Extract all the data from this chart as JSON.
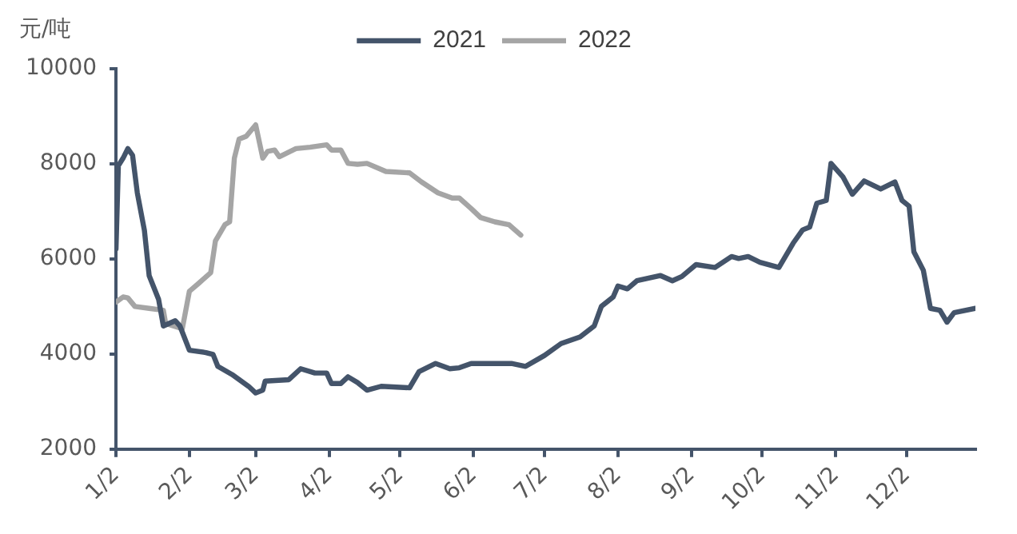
{
  "chart_data": {
    "type": "line",
    "ylabel": "元/吨",
    "legend": "top",
    "marker": "none",
    "line_style": "solid",
    "grid": false,
    "xlim": [
      "--01-02",
      "--12-31"
    ],
    "xticks": [
      {
        "value": "--01-02",
        "label": "1/2"
      },
      {
        "value": "--02-02",
        "label": "2/2"
      },
      {
        "value": "--03-02",
        "label": "3/2"
      },
      {
        "value": "--04-02",
        "label": "4/2"
      },
      {
        "value": "--05-02",
        "label": "5/2"
      },
      {
        "value": "--06-02",
        "label": "6/2"
      },
      {
        "value": "--07-02",
        "label": "7/2"
      },
      {
        "value": "--08-02",
        "label": "8/2"
      },
      {
        "value": "--09-02",
        "label": "9/2"
      },
      {
        "value": "--10-02",
        "label": "10/2"
      },
      {
        "value": "--11-02",
        "label": "11/2"
      },
      {
        "value": "--12-02",
        "label": "12/2"
      }
    ],
    "ylim": [
      2000,
      10000
    ],
    "yticks": [
      2000,
      4000,
      6000,
      8000,
      10000
    ],
    "series": [
      {
        "name": "2021",
        "color": "#44546a",
        "x": [
          "--01-02",
          "--01-03",
          "--01-05",
          "--01-07",
          "--01-09",
          "--01-11",
          "--01-14",
          "--01-16",
          "--01-20",
          "--01-22",
          "--01-27",
          "--01-29",
          "--02-02",
          "--02-09",
          "--02-12",
          "--02-14",
          "--02-20",
          "--02-27",
          "--03-02",
          "--03-05",
          "--03-06",
          "--03-16",
          "--03-21",
          "--03-27",
          "--04-01",
          "--04-03",
          "--04-07",
          "--04-10",
          "--04-14",
          "--04-18",
          "--04-24",
          "--05-06",
          "--05-10",
          "--05-17",
          "--05-23",
          "--05-27",
          "--06-01",
          "--06-12",
          "--06-18",
          "--06-24",
          "--07-02",
          "--07-09",
          "--07-17",
          "--07-23",
          "--07-26",
          "--07-31",
          "--08-02",
          "--08-06",
          "--08-10",
          "--08-20",
          "--08-25",
          "--08-29",
          "--09-04",
          "--09-12",
          "--09-19",
          "--09-22",
          "--09-26",
          "--10-01",
          "--10-09",
          "--10-15",
          "--10-19",
          "--10-22",
          "--10-25",
          "--10-29",
          "--10-31",
          "--11-05",
          "--11-09",
          "--11-14",
          "--11-21",
          "--11-27",
          "--11-30",
          "--12-03",
          "--12-05",
          "--12-09",
          "--12-12",
          "--12-16",
          "--12-19",
          "--12-22",
          "--12-31"
        ],
        "values": [
          6210,
          7960,
          8120,
          8320,
          8180,
          7390,
          6600,
          5650,
          5150,
          4590,
          4700,
          4590,
          4080,
          4030,
          3990,
          3740,
          3570,
          3320,
          3180,
          3240,
          3430,
          3460,
          3690,
          3600,
          3600,
          3380,
          3380,
          3520,
          3400,
          3240,
          3320,
          3290,
          3630,
          3800,
          3690,
          3710,
          3800,
          3800,
          3800,
          3740,
          3970,
          4220,
          4360,
          4590,
          5000,
          5200,
          5430,
          5370,
          5540,
          5650,
          5540,
          5630,
          5880,
          5820,
          6050,
          6010,
          6050,
          5930,
          5820,
          6330,
          6610,
          6670,
          7170,
          7230,
          8010,
          7730,
          7360,
          7640,
          7470,
          7620,
          7230,
          7110,
          6150,
          5760,
          4960,
          4920,
          4670,
          4870,
          4960
        ]
      },
      {
        "name": "2022",
        "color": "#a5a5a5",
        "x": [
          "--01-02",
          "--01-05",
          "--01-07",
          "--01-10",
          "--01-16",
          "--01-22",
          "--01-23",
          "--01-30",
          "--02-02",
          "--02-06",
          "--02-11",
          "--02-13",
          "--02-17",
          "--02-19",
          "--02-21",
          "--02-23",
          "--02-26",
          "--03-02",
          "--03-05",
          "--03-07",
          "--03-10",
          "--03-12",
          "--03-19",
          "--03-25",
          "--04-01",
          "--04-03",
          "--04-07",
          "--04-10",
          "--04-14",
          "--04-18",
          "--04-26",
          "--05-06",
          "--05-11",
          "--05-18",
          "--05-24",
          "--05-27",
          "--06-01",
          "--06-05",
          "--06-11",
          "--06-17",
          "--06-22"
        ],
        "values": [
          5090,
          5200,
          5180,
          5000,
          4960,
          4920,
          4640,
          4530,
          5320,
          5490,
          5710,
          6380,
          6720,
          6780,
          8120,
          8520,
          8580,
          8820,
          8120,
          8260,
          8290,
          8150,
          8320,
          8350,
          8400,
          8290,
          8290,
          8010,
          7990,
          8010,
          7840,
          7810,
          7620,
          7390,
          7280,
          7280,
          7060,
          6870,
          6780,
          6720,
          6500
        ]
      }
    ]
  }
}
